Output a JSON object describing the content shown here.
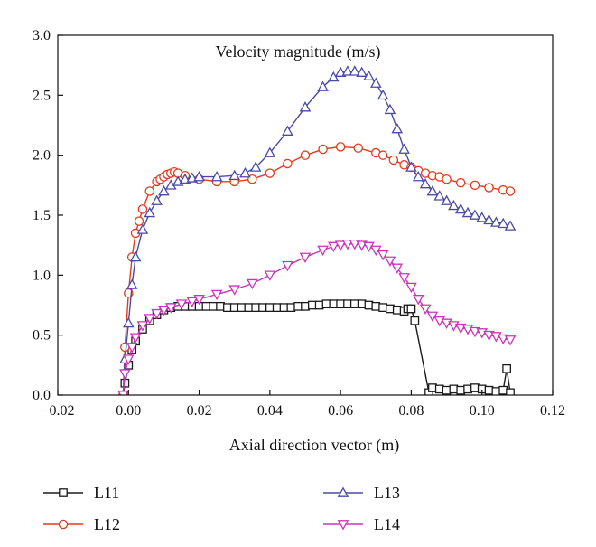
{
  "chart_data": {
    "type": "line",
    "title": "Velocity magnitude (m/s)",
    "xlabel": "Axial direction vector (m)",
    "ylabel": "",
    "xlim": [
      -0.02,
      0.12
    ],
    "ylim": [
      0.0,
      3.0
    ],
    "xticks": [
      -0.02,
      0.0,
      0.02,
      0.04,
      0.06,
      0.08,
      0.1,
      0.12
    ],
    "xtick_labels": [
      "−0.02",
      "0.00",
      "0.02",
      "0.04",
      "0.06",
      "0.08",
      "0.10",
      "0.12"
    ],
    "yticks": [
      0.0,
      0.5,
      1.0,
      1.5,
      2.0,
      2.5,
      3.0
    ],
    "ytick_labels": [
      "0.0",
      "0.5",
      "1.0",
      "1.5",
      "2.0",
      "2.5",
      "3.0"
    ],
    "grid": false,
    "legend": "bottom",
    "series": [
      {
        "name": "L11",
        "color": "#1a1a1a",
        "marker": "square",
        "x": [
          -0.0015,
          -0.001,
          0.0,
          0.001,
          0.002,
          0.004,
          0.006,
          0.008,
          0.01,
          0.012,
          0.014,
          0.016,
          0.018,
          0.02,
          0.022,
          0.024,
          0.026,
          0.028,
          0.03,
          0.032,
          0.034,
          0.036,
          0.038,
          0.04,
          0.042,
          0.044,
          0.046,
          0.048,
          0.05,
          0.052,
          0.054,
          0.056,
          0.058,
          0.06,
          0.062,
          0.064,
          0.066,
          0.068,
          0.07,
          0.072,
          0.074,
          0.076,
          0.078,
          0.079,
          0.08,
          0.081,
          0.085,
          0.086,
          0.088,
          0.09,
          0.092,
          0.094,
          0.096,
          0.098,
          0.1,
          0.102,
          0.104,
          0.106,
          0.107,
          0.108
        ],
        "y": [
          0.0,
          0.1,
          0.25,
          0.38,
          0.45,
          0.55,
          0.62,
          0.67,
          0.71,
          0.73,
          0.74,
          0.74,
          0.74,
          0.74,
          0.74,
          0.74,
          0.74,
          0.73,
          0.73,
          0.73,
          0.73,
          0.73,
          0.73,
          0.73,
          0.73,
          0.73,
          0.73,
          0.74,
          0.74,
          0.75,
          0.75,
          0.76,
          0.76,
          0.76,
          0.76,
          0.76,
          0.76,
          0.75,
          0.74,
          0.73,
          0.72,
          0.71,
          0.7,
          0.72,
          0.72,
          0.62,
          0.02,
          0.06,
          0.05,
          0.04,
          0.05,
          0.04,
          0.05,
          0.06,
          0.05,
          0.04,
          0.03,
          0.04,
          0.22,
          0.02
        ]
      },
      {
        "name": "L12",
        "color": "#e53a1e",
        "marker": "circle",
        "x": [
          -0.0015,
          -0.001,
          0.0,
          0.001,
          0.002,
          0.003,
          0.004,
          0.006,
          0.008,
          0.009,
          0.01,
          0.011,
          0.012,
          0.013,
          0.014,
          0.016,
          0.02,
          0.025,
          0.03,
          0.035,
          0.04,
          0.045,
          0.05,
          0.055,
          0.06,
          0.065,
          0.07,
          0.072,
          0.075,
          0.078,
          0.08,
          0.082,
          0.084,
          0.086,
          0.088,
          0.09,
          0.094,
          0.098,
          0.102,
          0.106,
          0.108
        ],
        "y": [
          0.0,
          0.4,
          0.85,
          1.15,
          1.35,
          1.45,
          1.55,
          1.7,
          1.78,
          1.8,
          1.82,
          1.84,
          1.85,
          1.86,
          1.85,
          1.83,
          1.8,
          1.78,
          1.78,
          1.8,
          1.85,
          1.93,
          2.0,
          2.05,
          2.07,
          2.06,
          2.02,
          2.0,
          1.96,
          1.92,
          1.9,
          1.87,
          1.85,
          1.83,
          1.82,
          1.8,
          1.77,
          1.75,
          1.73,
          1.71,
          1.7
        ]
      },
      {
        "name": "L13",
        "color": "#4a4aa8",
        "marker": "triangle-up",
        "x": [
          -0.0015,
          -0.001,
          0.0,
          0.001,
          0.002,
          0.004,
          0.006,
          0.008,
          0.01,
          0.012,
          0.014,
          0.016,
          0.018,
          0.02,
          0.025,
          0.03,
          0.033,
          0.036,
          0.04,
          0.045,
          0.05,
          0.055,
          0.058,
          0.06,
          0.062,
          0.064,
          0.066,
          0.068,
          0.07,
          0.072,
          0.074,
          0.076,
          0.078,
          0.08,
          0.082,
          0.084,
          0.086,
          0.088,
          0.09,
          0.092,
          0.094,
          0.096,
          0.098,
          0.1,
          0.102,
          0.104,
          0.106,
          0.108
        ],
        "y": [
          0.0,
          0.3,
          0.6,
          0.92,
          1.15,
          1.38,
          1.52,
          1.62,
          1.7,
          1.75,
          1.78,
          1.8,
          1.81,
          1.82,
          1.82,
          1.83,
          1.85,
          1.9,
          2.02,
          2.2,
          2.4,
          2.57,
          2.65,
          2.69,
          2.7,
          2.7,
          2.69,
          2.66,
          2.6,
          2.5,
          2.38,
          2.22,
          2.05,
          1.9,
          1.82,
          1.76,
          1.7,
          1.66,
          1.62,
          1.58,
          1.55,
          1.52,
          1.5,
          1.48,
          1.46,
          1.44,
          1.43,
          1.41
        ]
      },
      {
        "name": "L14",
        "color": "#cc33bb",
        "marker": "triangle-down",
        "x": [
          -0.0015,
          -0.001,
          0.0,
          0.001,
          0.002,
          0.004,
          0.006,
          0.008,
          0.01,
          0.012,
          0.015,
          0.018,
          0.02,
          0.025,
          0.03,
          0.035,
          0.04,
          0.045,
          0.05,
          0.055,
          0.058,
          0.06,
          0.062,
          0.064,
          0.066,
          0.068,
          0.07,
          0.072,
          0.074,
          0.076,
          0.078,
          0.08,
          0.082,
          0.084,
          0.086,
          0.088,
          0.09,
          0.092,
          0.094,
          0.096,
          0.098,
          0.1,
          0.102,
          0.104,
          0.106,
          0.108
        ],
        "y": [
          0.0,
          0.18,
          0.3,
          0.4,
          0.48,
          0.58,
          0.64,
          0.68,
          0.71,
          0.73,
          0.76,
          0.78,
          0.8,
          0.84,
          0.88,
          0.93,
          1.0,
          1.08,
          1.15,
          1.21,
          1.24,
          1.25,
          1.26,
          1.26,
          1.25,
          1.24,
          1.21,
          1.17,
          1.12,
          1.06,
          0.98,
          0.9,
          0.8,
          0.72,
          0.66,
          0.62,
          0.6,
          0.58,
          0.56,
          0.55,
          0.53,
          0.52,
          0.5,
          0.49,
          0.47,
          0.46
        ]
      }
    ]
  }
}
